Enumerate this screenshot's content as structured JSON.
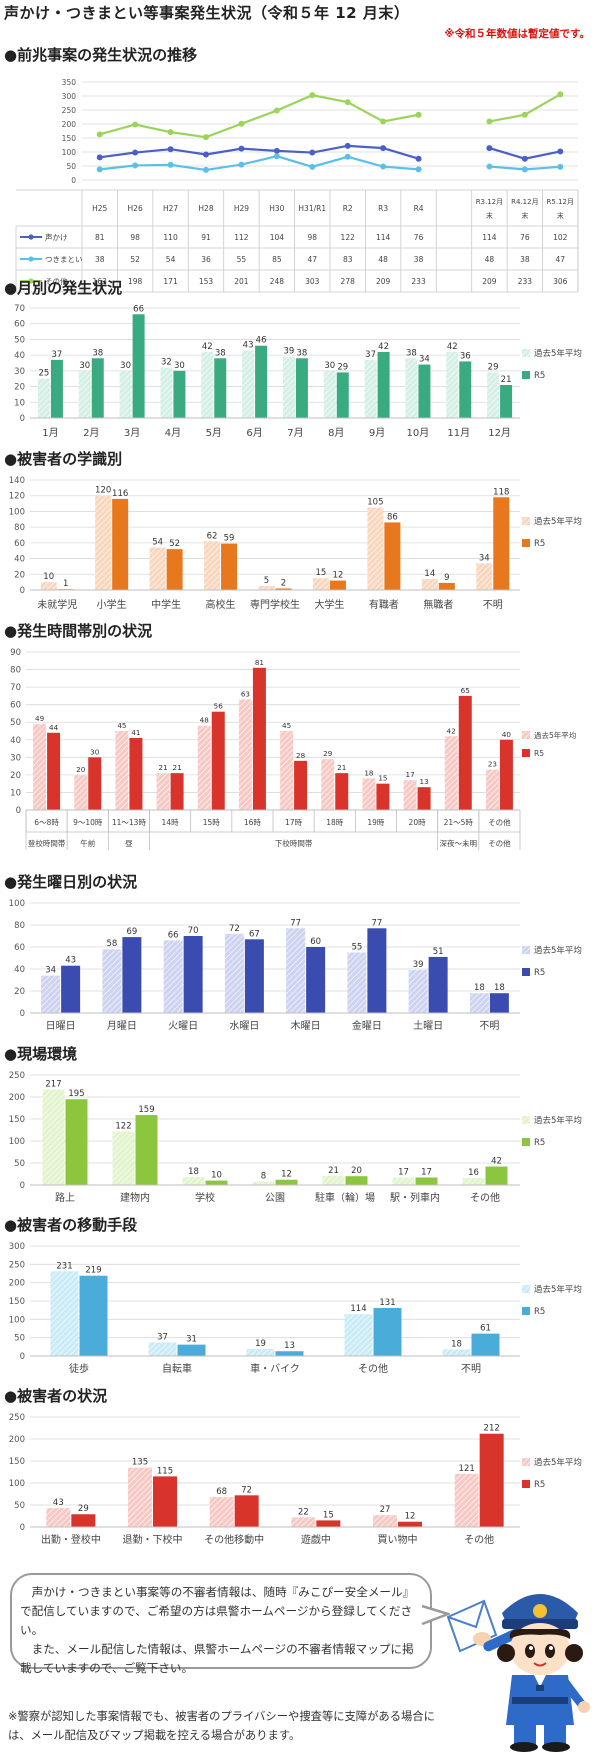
{
  "page": {
    "title": "声かけ・つきまとい等事案発生状況（令和５年 12 月末）",
    "note": "※令和５年数値は暫定値です。"
  },
  "sections": {
    "trend": "●前兆事案の発生状況の推移",
    "monthly": "●月別の発生状況",
    "school": "●被害者の学識別",
    "time": "●発生時間帯別の状況",
    "weekday": "●発生曜日別の状況",
    "place": "●現場環境",
    "transport": "●被害者の移動手段",
    "situation": "●被害者の状況"
  },
  "info": {
    "text1": "　声かけ・つきまとい事案等の不審者情報は、随時『みこぴー安全メール』で配信していますので、ご希望の方は県警ホームページから登録してください。",
    "text2": "　また、メール配信した情報は、県警ホームページの不審者情報マップに掲載していますので、ご覧下さい。"
  },
  "footnote": "※警察が認知した事案情報でも、被害者のプライバシーや捜査等に支障がある場合には、メール配信及びマップ掲載を控える場合があります。",
  "colors": {
    "koekake": "#4a5fc8",
    "tsukimatoi": "#5bc0e8",
    "sonota": "#9bd45a",
    "green": "#3aaa80",
    "orange": "#e8781e",
    "red": "#d9342b",
    "blue": "#3a4cb0",
    "lightgreen": "#8cc63f",
    "skyblue": "#4aacd8",
    "grid": "#d9d9d9"
  },
  "chart_data": [
    {
      "id": "trend",
      "type": "line",
      "ylim": [
        0,
        350
      ],
      "yticks": [
        0,
        50,
        100,
        150,
        200,
        250,
        300,
        350
      ],
      "categories": [
        "H25",
        "H26",
        "H27",
        "H28",
        "H29",
        "H30",
        "H31/R1",
        "R2",
        "R3",
        "R4",
        "",
        "R3.12月末",
        "R4.12月末",
        "R5.12月末"
      ],
      "series": [
        {
          "name": "声かけ",
          "color": "#4a5fc8",
          "values": [
            81,
            98,
            110,
            91,
            112,
            104,
            98,
            122,
            114,
            76,
            null,
            114,
            76,
            102
          ]
        },
        {
          "name": "つきまとい",
          "color": "#5bc0e8",
          "values": [
            38,
            52,
            54,
            36,
            55,
            85,
            47,
            83,
            48,
            38,
            null,
            48,
            38,
            47
          ]
        },
        {
          "name": "その他",
          "color": "#9bd45a",
          "values": [
            163,
            198,
            171,
            153,
            201,
            248,
            303,
            278,
            209,
            233,
            null,
            209,
            233,
            306
          ]
        }
      ]
    },
    {
      "id": "monthly",
      "type": "bar",
      "ylim": [
        0,
        70
      ],
      "yticks": [
        0,
        10,
        20,
        30,
        40,
        50,
        60,
        70
      ],
      "categories": [
        "1月",
        "2月",
        "3月",
        "4月",
        "5月",
        "6月",
        "7月",
        "8月",
        "9月",
        "10月",
        "11月",
        "12月"
      ],
      "series": [
        {
          "name": "過去5年平均",
          "color": "#d4efe5",
          "hatch": true,
          "values": [
            25,
            30,
            30,
            32,
            42,
            43,
            39,
            30,
            37,
            38,
            42,
            29
          ]
        },
        {
          "name": "R5",
          "color": "#3aaa80",
          "values": [
            37,
            38,
            66,
            30,
            38,
            46,
            38,
            29,
            42,
            34,
            36,
            21
          ]
        }
      ]
    },
    {
      "id": "school",
      "type": "bar",
      "ylim": [
        0,
        140
      ],
      "yticks": [
        0,
        20,
        40,
        60,
        80,
        100,
        120,
        140
      ],
      "categories": [
        "未就学児",
        "小学生",
        "中学生",
        "高校生",
        "専門学校生",
        "大学生",
        "有職者",
        "無職者",
        "不明"
      ],
      "series": [
        {
          "name": "過去5年平均",
          "color": "#f9d6bd",
          "hatch": true,
          "values": [
            10,
            120,
            54,
            62,
            5,
            15,
            105,
            14,
            34
          ]
        },
        {
          "name": "R5",
          "color": "#e8781e",
          "values": [
            1,
            116,
            52,
            59,
            2,
            12,
            86,
            9,
            118
          ]
        }
      ]
    },
    {
      "id": "time",
      "type": "bar",
      "ylim": [
        0,
        90
      ],
      "yticks": [
        0,
        10,
        20,
        30,
        40,
        50,
        60,
        70,
        80,
        90
      ],
      "categories": [
        "6～8時",
        "9～10時",
        "11～13時",
        "14時",
        "15時",
        "16時",
        "17時",
        "18時",
        "19時",
        "20時",
        "21～5時",
        "その他"
      ],
      "groups": [
        {
          "label": "登校時間帯",
          "span": 1
        },
        {
          "label": "午前",
          "span": 1
        },
        {
          "label": "昼",
          "span": 1
        },
        {
          "label": "下校時間帯",
          "span": 7
        },
        {
          "label": "深夜～未明",
          "span": 1
        },
        {
          "label": "その他",
          "span": 1
        }
      ],
      "series": [
        {
          "name": "過去5年平均",
          "color": "#f7c9c5",
          "hatch": true,
          "values": [
            49,
            20,
            45,
            21,
            48,
            63,
            45,
            29,
            18,
            17,
            42,
            23
          ]
        },
        {
          "name": "R5",
          "color": "#d9342b",
          "values": [
            44,
            30,
            41,
            21,
            56,
            81,
            28,
            21,
            15,
            13,
            65,
            40
          ]
        }
      ]
    },
    {
      "id": "weekday",
      "type": "bar",
      "ylim": [
        0,
        100
      ],
      "yticks": [
        0,
        20,
        40,
        60,
        80,
        100
      ],
      "categories": [
        "日曜日",
        "月曜日",
        "火曜日",
        "水曜日",
        "木曜日",
        "金曜日",
        "土曜日",
        "不明"
      ],
      "series": [
        {
          "name": "過去5年平均",
          "color": "#cdd3f0",
          "hatch": true,
          "values": [
            34,
            58,
            66,
            72,
            77,
            55,
            39,
            18
          ]
        },
        {
          "name": "R5",
          "color": "#3a4cb0",
          "values": [
            43,
            69,
            70,
            67,
            60,
            77,
            51,
            18
          ]
        }
      ]
    },
    {
      "id": "place",
      "type": "bar",
      "ylim": [
        0,
        250
      ],
      "yticks": [
        0,
        50,
        100,
        150,
        200,
        250
      ],
      "categories": [
        "路上",
        "建物内",
        "学校",
        "公園",
        "駐車（輪）場",
        "駅・列車内",
        "その他"
      ],
      "series": [
        {
          "name": "過去5年平均",
          "color": "#e2f4cc",
          "hatch": true,
          "values": [
            217,
            122,
            18,
            8,
            21,
            17,
            16
          ]
        },
        {
          "name": "R5",
          "color": "#8cc63f",
          "values": [
            195,
            159,
            10,
            12,
            20,
            17,
            42
          ]
        }
      ]
    },
    {
      "id": "transport",
      "type": "bar",
      "ylim": [
        0,
        300
      ],
      "yticks": [
        0,
        50,
        100,
        150,
        200,
        250,
        300
      ],
      "categories": [
        "徒歩",
        "自転車",
        "車・バイク",
        "その他",
        "不明"
      ],
      "series": [
        {
          "name": "過去5年平均",
          "color": "#c9ebf6",
          "hatch": true,
          "values": [
            231,
            37,
            19,
            114,
            18
          ]
        },
        {
          "name": "R5",
          "color": "#4aacd8",
          "values": [
            219,
            31,
            13,
            131,
            61
          ]
        }
      ]
    },
    {
      "id": "situation",
      "type": "bar",
      "ylim": [
        0,
        250
      ],
      "yticks": [
        0,
        50,
        100,
        150,
        200,
        250
      ],
      "categories": [
        "出勤・登校中",
        "退勤・下校中",
        "その他移動中",
        "遊戯中",
        "買い物中",
        "その他"
      ],
      "series": [
        {
          "name": "過去5年平均",
          "color": "#f7c9c5",
          "hatch": true,
          "values": [
            43,
            135,
            68,
            22,
            27,
            121
          ]
        },
        {
          "name": "R5",
          "color": "#d9342b",
          "values": [
            29,
            115,
            72,
            15,
            12,
            212
          ]
        }
      ]
    }
  ]
}
